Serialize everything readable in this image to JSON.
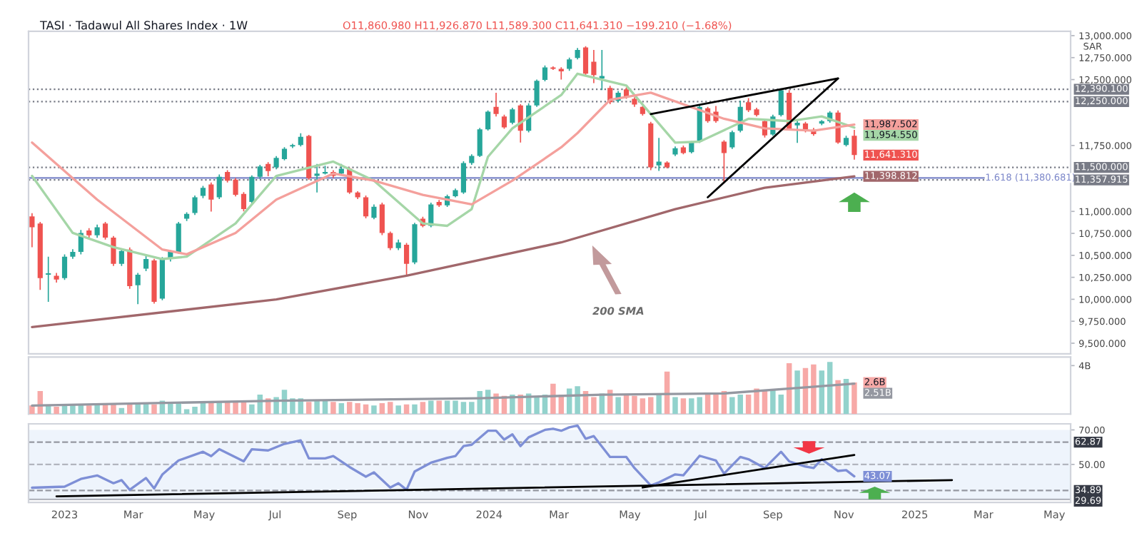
{
  "chart_data": [
    {
      "type": "candlestick",
      "title": "TASI · Tadawul All Shares Index · 1W",
      "annotations": [
        "O11,860.980 H11,926.870 L11,589.300 C11,641.310 −199.210 (−1.68%)",
        "SAR",
        "200 SMA",
        {
          "text": "11,641.310",
          "x": "2024-11-10",
          "y": 11641.31
        }
      ],
      "x": [
        "2022-12-04",
        "2022-12-11",
        "2022-12-18",
        "2022-12-25",
        "2023-01-01",
        "2023-01-08",
        "2023-01-15",
        "2023-01-22",
        "2023-01-29",
        "2023-02-05",
        "2023-02-12",
        "2023-02-19",
        "2023-02-26",
        "2023-03-05",
        "2023-03-12",
        "2023-03-19",
        "2023-03-26",
        "2023-04-02",
        "2023-04-09",
        "2023-04-16",
        "2023-04-23",
        "2023-04-30",
        "2023-05-07",
        "2023-05-14",
        "2023-05-21",
        "2023-05-28",
        "2023-06-04",
        "2023-06-11",
        "2023-06-18",
        "2023-06-25",
        "2023-07-02",
        "2023-07-09",
        "2023-07-16",
        "2023-07-23",
        "2023-07-30",
        "2023-08-06",
        "2023-08-13",
        "2023-08-20",
        "2023-08-27",
        "2023-09-03",
        "2023-09-10",
        "2023-09-17",
        "2023-09-24",
        "2023-10-01",
        "2023-10-08",
        "2023-10-15",
        "2023-10-22",
        "2023-10-29",
        "2023-11-05",
        "2023-11-12",
        "2023-11-19",
        "2023-11-26",
        "2023-12-03",
        "2023-12-10",
        "2023-12-17",
        "2023-12-24",
        "2023-12-31",
        "2024-01-07",
        "2024-01-14",
        "2024-01-21",
        "2024-01-28",
        "2024-02-04",
        "2024-02-11",
        "2024-02-18",
        "2024-02-25",
        "2024-03-03",
        "2024-03-10",
        "2024-03-17",
        "2024-03-24",
        "2024-03-31",
        "2024-04-07",
        "2024-04-14",
        "2024-04-21",
        "2024-04-28",
        "2024-05-05",
        "2024-05-12",
        "2024-05-19",
        "2024-05-26",
        "2024-06-02",
        "2024-06-09",
        "2024-06-16",
        "2024-06-23",
        "2024-06-30",
        "2024-07-07",
        "2024-07-14",
        "2024-07-21",
        "2024-07-28",
        "2024-08-04",
        "2024-08-11",
        "2024-08-18",
        "2024-08-25",
        "2024-09-01",
        "2024-09-08",
        "2024-09-15",
        "2024-09-22",
        "2024-09-29",
        "2024-10-06",
        "2024-10-13",
        "2024-10-20",
        "2024-10-27",
        "2024-11-03",
        "2024-11-10"
      ],
      "ohlc": [
        [
          10944,
          10980,
          10593,
          10820
        ],
        [
          10863,
          10880,
          10106,
          10241
        ],
        [
          10279,
          10485,
          9971,
          10295
        ],
        [
          10268,
          10300,
          10190,
          10225
        ],
        [
          10241,
          10510,
          10220,
          10485
        ],
        [
          10485,
          10570,
          10460,
          10539
        ],
        [
          10539,
          10790,
          10510,
          10755
        ],
        [
          10782,
          10810,
          10690,
          10728
        ],
        [
          10728,
          10850,
          10700,
          10820
        ],
        [
          10863,
          10880,
          10680,
          10701
        ],
        [
          10701,
          10720,
          10380,
          10403
        ],
        [
          10403,
          10580,
          10380,
          10550
        ],
        [
          10566,
          10590,
          10120,
          10149
        ],
        [
          10160,
          10300,
          9944,
          10279
        ],
        [
          10349,
          10490,
          10320,
          10458
        ],
        [
          10441,
          10460,
          9950,
          9971
        ],
        [
          10008,
          10480,
          9990,
          10458
        ],
        [
          10458,
          10560,
          10430,
          10539
        ],
        [
          10539,
          10880,
          10520,
          10863
        ],
        [
          10917,
          10990,
          10890,
          10972
        ],
        [
          10982,
          11180,
          10960,
          11161
        ],
        [
          11177,
          11290,
          11150,
          11269
        ],
        [
          11307,
          11330,
          10999,
          11134
        ],
        [
          11161,
          11420,
          11140,
          11393
        ],
        [
          11448,
          11470,
          11330,
          11350
        ],
        [
          11361,
          11380,
          11170,
          11188
        ],
        [
          11199,
          11220,
          11000,
          11026
        ],
        [
          11107,
          11410,
          11090,
          11393
        ],
        [
          11393,
          11530,
          11370,
          11512
        ],
        [
          11540,
          11560,
          11400,
          11458
        ],
        [
          11502,
          11630,
          11480,
          11610
        ],
        [
          11594,
          11730,
          11580,
          11713
        ],
        [
          11740,
          11770,
          11720,
          11756
        ],
        [
          11756,
          11890,
          11740,
          11848
        ],
        [
          11859,
          11870,
          11360,
          11377
        ],
        [
          11404,
          11540,
          11215,
          11431
        ],
        [
          11431,
          11520,
          11420,
          11448
        ],
        [
          11448,
          11470,
          11380,
          11404
        ],
        [
          11431,
          11540,
          11410,
          11485
        ],
        [
          11485,
          11500,
          11200,
          11215
        ],
        [
          11215,
          11230,
          11140,
          11161
        ],
        [
          11161,
          11180,
          10920,
          10944
        ],
        [
          10928,
          11080,
          10910,
          11053
        ],
        [
          11080,
          11100,
          10730,
          10755
        ],
        [
          10755,
          10770,
          10560,
          10582
        ],
        [
          10582,
          10680,
          10560,
          10647
        ],
        [
          10620,
          10640,
          10268,
          10403
        ],
        [
          10420,
          10870,
          10400,
          10853
        ],
        [
          10917,
          10940,
          10820,
          10836
        ],
        [
          10836,
          11100,
          10820,
          11080
        ],
        [
          11107,
          11130,
          11050,
          11069
        ],
        [
          11069,
          11190,
          11050,
          11172
        ],
        [
          11172,
          11260,
          11160,
          11242
        ],
        [
          11215,
          11570,
          11200,
          11550
        ],
        [
          11550,
          11650,
          11530,
          11632
        ],
        [
          11632,
          11950,
          11620,
          11934
        ],
        [
          11934,
          12150,
          11920,
          12135
        ],
        [
          12189,
          12351,
          12080,
          12108
        ],
        [
          12081,
          12100,
          11940,
          11956
        ],
        [
          12010,
          12180,
          11990,
          12162
        ],
        [
          12205,
          12220,
          11783,
          11918
        ],
        [
          11918,
          12230,
          11900,
          12205
        ],
        [
          12205,
          12500,
          12190,
          12486
        ],
        [
          12497,
          12660,
          12480,
          12638
        ],
        [
          12638,
          12650,
          12610,
          12622
        ],
        [
          12622,
          12640,
          12500,
          12594
        ],
        [
          12622,
          12750,
          12600,
          12730
        ],
        [
          12746,
          12860,
          12730,
          12838
        ],
        [
          12865,
          12880,
          12550,
          12567
        ],
        [
          12703,
          12838,
          12460,
          12551
        ],
        [
          12513,
          12838,
          12380,
          12540
        ],
        [
          12405,
          12430,
          12220,
          12243
        ],
        [
          12259,
          12370,
          12240,
          12351
        ],
        [
          12389,
          12410,
          12280,
          12297
        ],
        [
          12281,
          12300,
          12190,
          12216
        ],
        [
          12189,
          12200,
          12090,
          12108
        ],
        [
          12000,
          12020,
          11470,
          11502
        ],
        [
          11523,
          11837,
          11460,
          11567
        ],
        [
          11556,
          11570,
          11490,
          11502
        ],
        [
          11648,
          11740,
          11630,
          11718
        ],
        [
          11729,
          11750,
          11650,
          11664
        ],
        [
          11675,
          11800,
          11660,
          11783
        ],
        [
          11794,
          12210,
          11780,
          12189
        ],
        [
          12173,
          12190,
          12010,
          12027
        ],
        [
          12135,
          12200,
          12010,
          12027
        ],
        [
          11794,
          11810,
          11323,
          11664
        ],
        [
          11729,
          11920,
          11710,
          11902
        ],
        [
          11918,
          12260,
          11900,
          12189
        ],
        [
          12243,
          12290,
          12130,
          12151
        ],
        [
          12162,
          12180,
          12080,
          12097
        ],
        [
          12027,
          12050,
          11840,
          11864
        ],
        [
          11875,
          12100,
          11860,
          12081
        ],
        [
          12097,
          12400,
          12080,
          12378
        ],
        [
          12351,
          12380,
          11930,
          11945
        ],
        [
          11978,
          12040,
          11780,
          12010
        ],
        [
          12000,
          12020,
          11900,
          11918
        ],
        [
          11929,
          11950,
          11860,
          11880
        ],
        [
          11999,
          12040,
          11980,
          12027
        ],
        [
          12027,
          12140,
          12010,
          12124
        ],
        [
          12124,
          12150,
          11770,
          11783
        ],
        [
          11756,
          11860,
          11740,
          11837
        ],
        [
          11860.98,
          11926.87,
          11589.3,
          11641.31
        ]
      ],
      "colors": [
        "#ef5350",
        "#ef5350",
        "#26a69a",
        "#ef5350",
        "#26a69a",
        "#26a69a",
        "#26a69a",
        "#ef5350",
        "#26a69a",
        "#ef5350",
        "#ef5350",
        "#26a69a",
        "#ef5350",
        "#26a69a",
        "#26a69a",
        "#ef5350",
        "#26a69a",
        "#26a69a",
        "#26a69a",
        "#26a69a",
        "#26a69a",
        "#26a69a",
        "#ef5350",
        "#26a69a",
        "#ef5350",
        "#ef5350",
        "#ef5350",
        "#26a69a",
        "#26a69a",
        "#ef5350",
        "#26a69a",
        "#26a69a",
        "#26a69a",
        "#26a69a",
        "#ef5350",
        "#26a69a",
        "#26a69a",
        "#ef5350",
        "#26a69a",
        "#ef5350",
        "#ef5350",
        "#ef5350",
        "#26a69a",
        "#ef5350",
        "#ef5350",
        "#26a69a",
        "#ef5350",
        "#26a69a",
        "#ef5350",
        "#26a69a",
        "#ef5350",
        "#26a69a",
        "#26a69a",
        "#26a69a",
        "#26a69a",
        "#26a69a",
        "#26a69a",
        "#ef5350",
        "#ef5350",
        "#26a69a",
        "#ef5350",
        "#26a69a",
        "#26a69a",
        "#26a69a",
        "#ef5350",
        "#ef5350",
        "#26a69a",
        "#26a69a",
        "#ef5350",
        "#ef5350",
        "#26a69a",
        "#ef5350",
        "#26a69a",
        "#ef5350",
        "#ef5350",
        "#ef5350",
        "#ef5350",
        "#26a69a",
        "#ef5350",
        "#26a69a",
        "#ef5350",
        "#26a69a",
        "#26a69a",
        "#ef5350",
        "#ef5350",
        "#ef5350",
        "#26a69a",
        "#26a69a",
        "#ef5350",
        "#ef5350",
        "#ef5350",
        "#26a69a",
        "#26a69a",
        "#ef5350",
        "#26a69a",
        "#ef5350",
        "#ef5350",
        "#26a69a",
        "#26a69a",
        "#ef5350",
        "#26a69a",
        "#ef5350"
      ],
      "series": [
        {
          "type": "line",
          "color": "#a5d6a7",
          "x": [
            "2022-12-04",
            "2023-01-08",
            "2023-02-12",
            "2023-03-26",
            "2023-04-16",
            "2023-05-28",
            "2023-07-02",
            "2023-08-20",
            "2023-09-24",
            "2023-11-05",
            "2023-11-26",
            "2023-12-17",
            "2023-12-31",
            "2024-01-21",
            "2024-03-03",
            "2024-03-17",
            "2024-04-28",
            "2024-06-09",
            "2024-06-30",
            "2024-08-11",
            "2024-09-15",
            "2024-10-13",
            "2024-11-10"
          ],
          "values": [
            11404,
            10755,
            10593,
            10458,
            10485,
            10863,
            11404,
            11567,
            11350,
            10863,
            10836,
            11026,
            11621,
            11945,
            12324,
            12567,
            12432,
            11783,
            11794,
            12054,
            12027,
            12081,
            11954.55
          ],
          "value_labels": [
            null,
            null,
            null,
            null,
            null,
            null,
            null,
            null,
            null,
            null,
            null,
            null,
            null,
            null,
            null,
            null,
            null,
            null,
            null,
            null,
            null,
            null,
            "11,954.550"
          ]
        },
        {
          "type": "line",
          "color": "#f4a09c",
          "x": [
            "2022-12-04",
            "2023-01-29",
            "2023-03-26",
            "2023-04-16",
            "2023-05-28",
            "2023-07-02",
            "2023-08-20",
            "2023-09-24",
            "2023-11-05",
            "2023-12-17",
            "2024-01-21",
            "2024-03-03",
            "2024-03-17",
            "2024-04-14",
            "2024-05-19",
            "2024-07-21",
            "2024-08-25",
            "2024-10-06",
            "2024-11-10"
          ],
          "values": [
            11783,
            11134,
            10566,
            10512,
            10755,
            11134,
            11431,
            11350,
            11188,
            11080,
            11350,
            11729,
            11891,
            12270,
            12351,
            12054,
            11945,
            11918,
            11987.502
          ],
          "value_labels": [
            null,
            null,
            null,
            null,
            null,
            null,
            null,
            null,
            null,
            null,
            null,
            null,
            null,
            null,
            null,
            null,
            null,
            null,
            "11,987.502"
          ]
        },
        {
          "type": "line",
          "color": "#a1676b",
          "x": [
            "2022-12-04",
            "2023-07-02",
            "2023-10-22",
            "2024-03-03",
            "2024-06-09",
            "2024-08-25",
            "2024-11-10"
          ],
          "values": [
            9684,
            9998,
            10268,
            10647,
            11026,
            11269,
            11398.812
          ],
          "value_labels": [
            null,
            null,
            null,
            null,
            null,
            null,
            "11,398.812"
          ]
        },
        {
          "type": "line",
          "color": "#000000",
          "x": [
            "2024-05-19",
            "2024-10-27"
          ],
          "values": [
            12108,
            12513
          ]
        },
        {
          "type": "line",
          "color": "#000000",
          "x": [
            "2024-07-07",
            "2024-10-27"
          ],
          "values": [
            11161,
            12513
          ]
        }
      ],
      "ref_lines": [
        {
          "axis": "y",
          "value": 12390.1,
          "label": "12,390.100",
          "color": "#787b86",
          "line_style": "dotted"
        },
        {
          "axis": "y",
          "value": 12250,
          "label": "12,250.000",
          "color": "#787b86",
          "line_style": "dotted"
        },
        {
          "axis": "y",
          "value": 11500,
          "label": "11,500.000",
          "color": "#787b86",
          "line_style": "dotted"
        },
        {
          "axis": "y",
          "value": 11357.915,
          "label": "11,357.915",
          "color": "#787b86",
          "line_style": "dotted"
        },
        {
          "axis": "y",
          "value": 11380.681,
          "label": "1.618 (11,380.681)",
          "color": "#7b86c9",
          "line_style": "solid"
        }
      ],
      "ylim": [
        9380,
        13050
      ],
      "yticks": [
        {
          "value": 9500,
          "label": "9,500.000"
        },
        {
          "value": 9750,
          "label": "9,750.000"
        },
        {
          "value": 10000,
          "label": "10,000.000"
        },
        {
          "value": 10250,
          "label": "10,250.000"
        },
        {
          "value": 10500,
          "label": "10,500.000"
        },
        {
          "value": 10750,
          "label": "10,750.000"
        },
        {
          "value": 11000,
          "label": "11,000.000"
        },
        {
          "value": 11750,
          "label": "11,750.000"
        },
        {
          "value": 12500,
          "label": "12,500.000"
        },
        {
          "value": 12750,
          "label": "12,750.000"
        },
        {
          "value": 13000,
          "label": "13,000.000"
        }
      ],
      "xlim": [
        "2022-12-01",
        "2025-05-15"
      ],
      "tick_labels": "y"
    },
    {
      "type": "bar",
      "tick_labels": "y",
      "xlim": [
        "2022-12-01",
        "2025-05-15"
      ],
      "ylim": [
        0,
        4.7
      ],
      "yticks": [
        {
          "value": 4,
          "label": "4B"
        }
      ],
      "annotations": [
        {
          "text": "2.6B",
          "x": "2024-11-10",
          "y": 2.6
        }
      ],
      "x": [
        "2022-12-04",
        "2022-12-11",
        "2022-12-18",
        "2022-12-25",
        "2023-01-01",
        "2023-01-08",
        "2023-01-15",
        "2023-01-22",
        "2023-01-29",
        "2023-02-05",
        "2023-02-12",
        "2023-02-19",
        "2023-02-26",
        "2023-03-05",
        "2023-03-12",
        "2023-03-19",
        "2023-03-26",
        "2023-04-02",
        "2023-04-09",
        "2023-04-16",
        "2023-04-23",
        "2023-04-30",
        "2023-05-07",
        "2023-05-14",
        "2023-05-21",
        "2023-05-28",
        "2023-06-04",
        "2023-06-11",
        "2023-06-18",
        "2023-06-25",
        "2023-07-02",
        "2023-07-09",
        "2023-07-16",
        "2023-07-23",
        "2023-07-30",
        "2023-08-06",
        "2023-08-13",
        "2023-08-20",
        "2023-08-27",
        "2023-09-03",
        "2023-09-10",
        "2023-09-17",
        "2023-09-24",
        "2023-10-01",
        "2023-10-08",
        "2023-10-15",
        "2023-10-22",
        "2023-10-29",
        "2023-11-05",
        "2023-11-12",
        "2023-11-19",
        "2023-11-26",
        "2023-12-03",
        "2023-12-10",
        "2023-12-17",
        "2023-12-24",
        "2023-12-31",
        "2024-01-07",
        "2024-01-14",
        "2024-01-21",
        "2024-01-28",
        "2024-02-04",
        "2024-02-11",
        "2024-02-18",
        "2024-02-25",
        "2024-03-03",
        "2024-03-10",
        "2024-03-17",
        "2024-03-24",
        "2024-03-31",
        "2024-04-07",
        "2024-04-14",
        "2024-04-21",
        "2024-04-28",
        "2024-05-05",
        "2024-05-12",
        "2024-05-19",
        "2024-05-26",
        "2024-06-02",
        "2024-06-09",
        "2024-06-16",
        "2024-06-23",
        "2024-06-30",
        "2024-07-07",
        "2024-07-14",
        "2024-07-21",
        "2024-07-28",
        "2024-08-04",
        "2024-08-11",
        "2024-08-18",
        "2024-08-25",
        "2024-09-01",
        "2024-09-08",
        "2024-09-15",
        "2024-09-22",
        "2024-09-29",
        "2024-10-06",
        "2024-10-13",
        "2024-10-20",
        "2024-10-27",
        "2024-11-03",
        "2024-11-10"
      ],
      "series": [
        {
          "type": "bar",
          "values": [
            0.7,
            1.9,
            0.7,
            0.6,
            0.8,
            0.8,
            0.8,
            0.7,
            0.8,
            0.8,
            0.8,
            0.5,
            0.9,
            0.8,
            0.9,
            0.8,
            1.1,
            1.0,
            0.9,
            0.4,
            0.6,
            0.9,
            1.0,
            1.0,
            1.0,
            1.0,
            1.0,
            0.8,
            1.6,
            1.3,
            1.4,
            2.0,
            1.3,
            1.3,
            1.0,
            1.1,
            1.1,
            1.0,
            0.9,
            1.0,
            0.9,
            0.8,
            0.7,
            0.9,
            1.0,
            0.7,
            0.8,
            0.8,
            1.0,
            1.1,
            1.1,
            1.1,
            1.1,
            1.0,
            1.0,
            1.9,
            2.0,
            1.7,
            1.5,
            1.6,
            1.6,
            1.7,
            1.4,
            1.6,
            2.5,
            1.6,
            2.1,
            2.3,
            1.9,
            1.4,
            1.7,
            2.0,
            1.4,
            1.6,
            1.5,
            1.3,
            1.4,
            1.6,
            3.5,
            1.4,
            1.3,
            1.3,
            1.4,
            1.6,
            1.6,
            1.9,
            1.4,
            1.6,
            1.6,
            2.1,
            1.9,
            2.0,
            1.6,
            4.2,
            3.6,
            3.8,
            4.1,
            3.6,
            4.3,
            2.8,
            2.9,
            2.6
          ],
          "colors": [
            "#f7a9a7",
            "#f7a9a7",
            "#92d2cc",
            "#f7a9a7",
            "#92d2cc",
            "#92d2cc",
            "#92d2cc",
            "#f7a9a7",
            "#92d2cc",
            "#f7a9a7",
            "#f7a9a7",
            "#92d2cc",
            "#f7a9a7",
            "#92d2cc",
            "#92d2cc",
            "#f7a9a7",
            "#92d2cc",
            "#92d2cc",
            "#92d2cc",
            "#92d2cc",
            "#92d2cc",
            "#92d2cc",
            "#f7a9a7",
            "#92d2cc",
            "#f7a9a7",
            "#f7a9a7",
            "#f7a9a7",
            "#92d2cc",
            "#92d2cc",
            "#f7a9a7",
            "#92d2cc",
            "#92d2cc",
            "#92d2cc",
            "#92d2cc",
            "#f7a9a7",
            "#92d2cc",
            "#92d2cc",
            "#f7a9a7",
            "#92d2cc",
            "#f7a9a7",
            "#f7a9a7",
            "#f7a9a7",
            "#92d2cc",
            "#f7a9a7",
            "#f7a9a7",
            "#92d2cc",
            "#f7a9a7",
            "#92d2cc",
            "#f7a9a7",
            "#92d2cc",
            "#f7a9a7",
            "#92d2cc",
            "#92d2cc",
            "#92d2cc",
            "#92d2cc",
            "#92d2cc",
            "#92d2cc",
            "#f7a9a7",
            "#f7a9a7",
            "#92d2cc",
            "#f7a9a7",
            "#92d2cc",
            "#92d2cc",
            "#92d2cc",
            "#f7a9a7",
            "#f7a9a7",
            "#92d2cc",
            "#92d2cc",
            "#f7a9a7",
            "#f7a9a7",
            "#92d2cc",
            "#f7a9a7",
            "#92d2cc",
            "#f7a9a7",
            "#f7a9a7",
            "#f7a9a7",
            "#f7a9a7",
            "#92d2cc",
            "#f7a9a7",
            "#92d2cc",
            "#f7a9a7",
            "#92d2cc",
            "#92d2cc",
            "#f7a9a7",
            "#f7a9a7",
            "#f7a9a7",
            "#92d2cc",
            "#92d2cc",
            "#f7a9a7",
            "#f7a9a7",
            "#f7a9a7",
            "#92d2cc",
            "#92d2cc",
            "#f7a9a7",
            "#92d2cc",
            "#f7a9a7",
            "#f7a9a7",
            "#92d2cc",
            "#92d2cc",
            "#f7a9a7",
            "#92d2cc",
            "#f7a9a7"
          ]
        },
        {
          "type": "line",
          "color": "#9598a1",
          "x": [
            "2022-12-04",
            "2023-07-02",
            "2023-12-24",
            "2024-04-07",
            "2024-07-21",
            "2024-09-29",
            "2024-11-10"
          ],
          "values": [
            0.7,
            1.1,
            1.3,
            1.6,
            1.7,
            2.2,
            2.51
          ],
          "value_labels": [
            null,
            null,
            null,
            null,
            null,
            null,
            "2.51B"
          ]
        }
      ]
    },
    {
      "type": "line",
      "xlim": [
        "2022-12-01",
        "2025-05-15"
      ],
      "ylim": [
        28,
        73.5
      ],
      "yticks": [
        {
          "value": 70,
          "label": "70.00"
        },
        {
          "value": 50,
          "label": "50.00"
        }
      ],
      "xticks": [
        {
          "value": "2023-01-01",
          "label": "2023"
        },
        {
          "value": "2023-03-01",
          "label": "Mar"
        },
        {
          "value": "2023-05-01",
          "label": "May"
        },
        {
          "value": "2023-07-01",
          "label": "Jul"
        },
        {
          "value": "2023-09-01",
          "label": "Sep"
        },
        {
          "value": "2023-11-01",
          "label": "Nov"
        },
        {
          "value": "2024-01-01",
          "label": "2024"
        },
        {
          "value": "2024-03-01",
          "label": "Mar"
        },
        {
          "value": "2024-05-01",
          "label": "May"
        },
        {
          "value": "2024-07-01",
          "label": "Jul"
        },
        {
          "value": "2024-09-01",
          "label": "Sep"
        },
        {
          "value": "2024-11-01",
          "label": "Nov"
        },
        {
          "value": "2025-01-01",
          "label": "2025"
        },
        {
          "value": "2025-03-01",
          "label": "Mar"
        },
        {
          "value": "2025-05-01",
          "label": "May"
        }
      ],
      "bands": [
        {
          "axis": "y",
          "from": 30,
          "to": 70,
          "color": "#eef4fc"
        }
      ],
      "ref_lines": [
        {
          "axis": "y",
          "value": 62.87,
          "label": "62.87",
          "color": "#9598a1",
          "line_style": "dashed"
        },
        {
          "axis": "y",
          "value": 50,
          "color": "#b2b5be",
          "line_style": "dashed"
        },
        {
          "axis": "y",
          "value": 34.89,
          "label": "34.89",
          "color": "#9598a1",
          "line_style": "dashed"
        },
        {
          "axis": "y",
          "value": 29.69,
          "label": "29.69",
          "color": "#b2b5be",
          "line_style": "solid"
        }
      ],
      "annotations": [
        {
          "text": "43.07",
          "x": "2024-11-10",
          "y": 43.07
        }
      ],
      "series": [
        {
          "type": "line",
          "color": "#7e8fd6",
          "x": [
            "2022-12-04",
            "2023-01-01",
            "2023-01-15",
            "2023-01-29",
            "2023-02-12",
            "2023-02-19",
            "2023-02-26",
            "2023-03-12",
            "2023-03-19",
            "2023-03-26",
            "2023-04-09",
            "2023-04-30",
            "2023-05-07",
            "2023-05-14",
            "2023-06-04",
            "2023-06-11",
            "2023-06-25",
            "2023-07-09",
            "2023-07-23",
            "2023-07-30",
            "2023-08-13",
            "2023-08-20",
            "2023-09-03",
            "2023-09-17",
            "2023-09-24",
            "2023-10-08",
            "2023-10-15",
            "2023-10-22",
            "2023-10-29",
            "2023-11-12",
            "2023-11-26",
            "2023-12-03",
            "2023-12-10",
            "2023-12-17",
            "2023-12-31",
            "2024-01-07",
            "2024-01-14",
            "2024-01-21",
            "2024-01-28",
            "2024-02-04",
            "2024-02-18",
            "2024-02-25",
            "2024-03-03",
            "2024-03-10",
            "2024-03-17",
            "2024-03-24",
            "2024-03-31",
            "2024-04-14",
            "2024-04-28",
            "2024-05-05",
            "2024-05-19",
            "2024-05-26",
            "2024-06-09",
            "2024-06-16",
            "2024-06-30",
            "2024-07-14",
            "2024-07-21",
            "2024-08-04",
            "2024-08-11",
            "2024-08-25",
            "2024-09-08",
            "2024-09-15",
            "2024-09-29",
            "2024-10-06",
            "2024-10-13",
            "2024-10-27",
            "2024-11-03",
            "2024-11-10"
          ],
          "values": [
            36.5,
            37.1,
            41.6,
            43.6,
            39.1,
            40.9,
            35.3,
            42.1,
            36.1,
            44.1,
            52.3,
            57.3,
            54.8,
            58.8,
            51.8,
            58.8,
            58.1,
            61.9,
            63.9,
            53.5,
            53.5,
            54.8,
            48.5,
            42.9,
            45.4,
            36.6,
            39.1,
            35.3,
            45.9,
            51.0,
            53.8,
            54.8,
            60.6,
            61.4,
            69.5,
            69.5,
            64.4,
            67.4,
            60.6,
            65.7,
            70.0,
            70.7,
            69.5,
            71.5,
            72.5,
            64.9,
            66.4,
            54.3,
            54.3,
            47.9,
            37.8,
            39.6,
            44.2,
            43.7,
            55.0,
            52.3,
            44.7,
            54.3,
            53.0,
            47.9,
            57.3,
            51.8,
            48.7,
            47.9,
            53.0,
            46.2,
            46.7,
            43.07
          ]
        },
        {
          "type": "line",
          "color": "#000000",
          "x": [
            "2024-05-12",
            "2024-11-10"
          ],
          "values": [
            36.6,
            55.5
          ]
        },
        {
          "type": "line",
          "color": "#000000",
          "x": [
            "2022-12-25",
            "2025-02-02"
          ],
          "values": [
            31.5,
            40.9
          ]
        }
      ]
    }
  ]
}
